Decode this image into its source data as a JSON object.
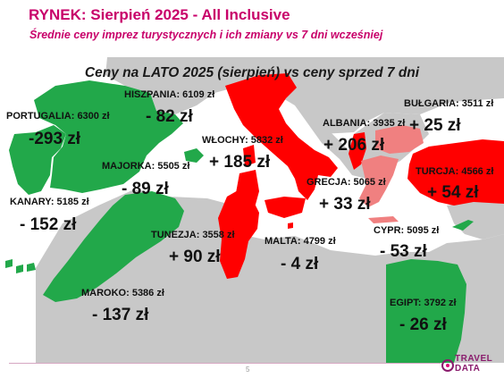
{
  "header": {
    "title": "RYNEK: Sierpień 2025 - All Inclusive",
    "subtitle": "Średnie ceny imprez turystycznych i ich zmiany vs 7 dni wcześniej"
  },
  "map": {
    "heading": "Ceny na LATO 2025 (sierpień) vs ceny sprzed 7 dni",
    "colors": {
      "increase": "#ff0000",
      "increase_light": "#f08080",
      "decrease": "#22a84a",
      "land": "#c8c8c8",
      "sea": "#ffffff"
    },
    "destinations": [
      {
        "id": "portugalia",
        "price": "PORTUGALIA:  6300 zł",
        "change": "-293 zł",
        "trend": "down"
      },
      {
        "id": "hiszpania",
        "price": "HISZPANIA: 6109 zł",
        "change": "- 82 zł",
        "trend": "down"
      },
      {
        "id": "majorka",
        "price": "MAJORKA: 5505 zł",
        "change": "- 89 zł",
        "trend": "down"
      },
      {
        "id": "kanary",
        "price": "KANARY: 5185 zł",
        "change": "- 152 zł",
        "trend": "down"
      },
      {
        "id": "maroko",
        "price": "MAROKO: 5386 zł",
        "change": "- 137 zł",
        "trend": "down"
      },
      {
        "id": "wlochy",
        "price": "WŁOCHY: 5832 zł",
        "change": "+ 185 zł",
        "trend": "up"
      },
      {
        "id": "tunezja",
        "price": "TUNEZJA: 3558 zł",
        "change": "+ 90 zł",
        "trend": "up"
      },
      {
        "id": "malta",
        "price": "MALTA: 4799 zł",
        "change": "- 4 zł",
        "trend": "down"
      },
      {
        "id": "albania",
        "price": "ALBANIA: 3935 zł",
        "change": "+ 206 zł",
        "trend": "up"
      },
      {
        "id": "grecja",
        "price": "GRECJA: 5065 zł",
        "change": "+ 33 zł",
        "trend": "up"
      },
      {
        "id": "bulgaria",
        "price": "BUŁGARIA: 3511 zł",
        "change": "+ 25 zł",
        "trend": "up"
      },
      {
        "id": "turcja",
        "price": "TURCJA: 4566 zł",
        "change": "+ 54 zł",
        "trend": "up"
      },
      {
        "id": "cypr",
        "price": "CYPR: 5095 zł",
        "change": "- 53 zł",
        "trend": "down"
      },
      {
        "id": "egipt",
        "price": "EGIPT: 3792 zł",
        "change": "- 26 zł",
        "trend": "down"
      }
    ]
  },
  "footer": {
    "page_number": "5",
    "logo_line1": "TRAVEL",
    "logo_line2": "DATA"
  }
}
